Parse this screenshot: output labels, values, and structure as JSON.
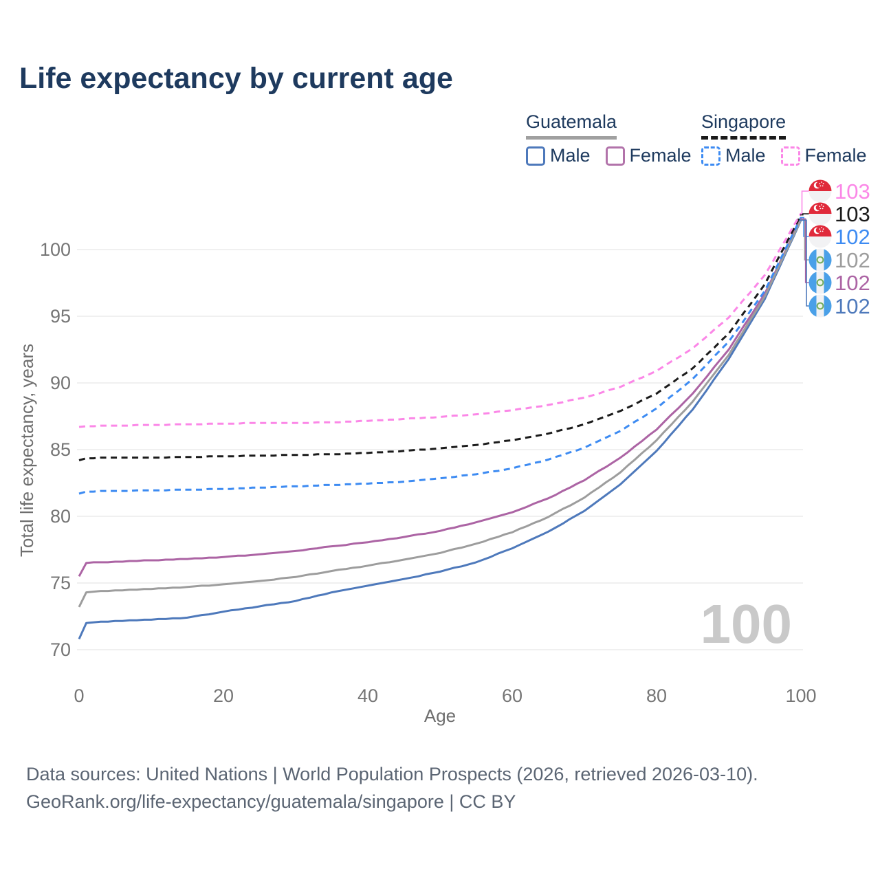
{
  "title": "Life expectancy by current age",
  "legend": {
    "guatemala": {
      "label": "Guatemala",
      "male_label": "Male",
      "female_label": "Female"
    },
    "singapore": {
      "label": "Singapore",
      "male_label": "Male",
      "female_label": "Female"
    }
  },
  "watermark": {
    "value": "100"
  },
  "footer": {
    "line1": "Data sources: United Nations | World Population Prospects (2026, retrieved 2026-03-10).",
    "line2": "GeoRank.org/life-expectancy/guatemala/singapore | CC BY"
  },
  "chart_data": {
    "type": "line",
    "title": "Life expectancy by current age",
    "xlabel": "Age",
    "ylabel": "Total life expectancy, years",
    "xlim": [
      0,
      100
    ],
    "ylim": [
      70,
      103
    ],
    "xticks": [
      0,
      20,
      40,
      60,
      80,
      100
    ],
    "yticks": [
      70,
      75,
      80,
      85,
      90,
      95,
      100
    ],
    "grid": "horizontal",
    "legend_position": "top-right",
    "ages": [
      0,
      1,
      5,
      10,
      15,
      20,
      25,
      30,
      35,
      40,
      45,
      50,
      55,
      60,
      65,
      70,
      75,
      80,
      85,
      90,
      95,
      100
    ],
    "series": [
      {
        "name": "Singapore Female",
        "country": "Singapore",
        "sex": "Female",
        "flag": "singapore",
        "color": "#fb87e7",
        "style": "dashed",
        "end_label": "103",
        "values": [
          86.7,
          86.75,
          86.8,
          86.85,
          86.9,
          86.95,
          87.0,
          87.0,
          87.05,
          87.15,
          87.3,
          87.45,
          87.65,
          87.95,
          88.35,
          88.9,
          89.7,
          90.9,
          92.6,
          94.9,
          98.1,
          102.7
        ]
      },
      {
        "name": "Singapore",
        "country": "Singapore",
        "sex": "Total",
        "flag": "singapore",
        "color": "#1b1b1b",
        "style": "dashed",
        "end_label": "103",
        "values": [
          84.2,
          84.35,
          84.4,
          84.4,
          84.45,
          84.5,
          84.55,
          84.6,
          84.65,
          84.75,
          84.9,
          85.1,
          85.35,
          85.7,
          86.2,
          86.9,
          87.9,
          89.2,
          91.1,
          93.7,
          97.4,
          102.6
        ]
      },
      {
        "name": "Singapore Male",
        "country": "Singapore",
        "sex": "Male",
        "flag": "singapore",
        "color": "#3d8bf2",
        "style": "dashed",
        "end_label": "102",
        "values": [
          81.7,
          81.85,
          81.9,
          81.95,
          82.0,
          82.05,
          82.15,
          82.25,
          82.35,
          82.45,
          82.6,
          82.85,
          83.15,
          83.6,
          84.25,
          85.15,
          86.4,
          88.1,
          90.3,
          93.1,
          96.9,
          102.4
        ]
      },
      {
        "name": "Guatemala",
        "country": "Guatemala",
        "sex": "Total",
        "flag": "guatemala",
        "color": "#9d9d9d",
        "style": "solid",
        "end_label": "102",
        "values": [
          73.2,
          74.3,
          74.45,
          74.55,
          74.7,
          74.9,
          75.15,
          75.45,
          75.9,
          76.3,
          76.75,
          77.25,
          77.95,
          78.8,
          79.95,
          81.4,
          83.3,
          85.7,
          88.6,
          92.1,
          96.5,
          102.25
        ]
      },
      {
        "name": "Guatemala Female",
        "country": "Guatemala",
        "sex": "Female",
        "flag": "guatemala",
        "color": "#ac64a4",
        "style": "solid",
        "end_label": "102",
        "values": [
          75.5,
          76.5,
          76.6,
          76.7,
          76.8,
          76.95,
          77.15,
          77.4,
          77.75,
          78.05,
          78.45,
          78.9,
          79.55,
          80.3,
          81.35,
          82.7,
          84.4,
          86.5,
          89.2,
          92.5,
          96.7,
          102.3
        ]
      },
      {
        "name": "Guatemala Male",
        "country": "Guatemala",
        "sex": "Male",
        "flag": "guatemala",
        "color": "#4e79bb",
        "style": "solid",
        "end_label": "102",
        "values": [
          70.8,
          72.0,
          72.15,
          72.25,
          72.4,
          72.85,
          73.25,
          73.65,
          74.3,
          74.8,
          75.3,
          75.85,
          76.55,
          77.6,
          78.85,
          80.4,
          82.4,
          84.9,
          88.0,
          91.8,
          96.3,
          102.2
        ]
      }
    ]
  }
}
